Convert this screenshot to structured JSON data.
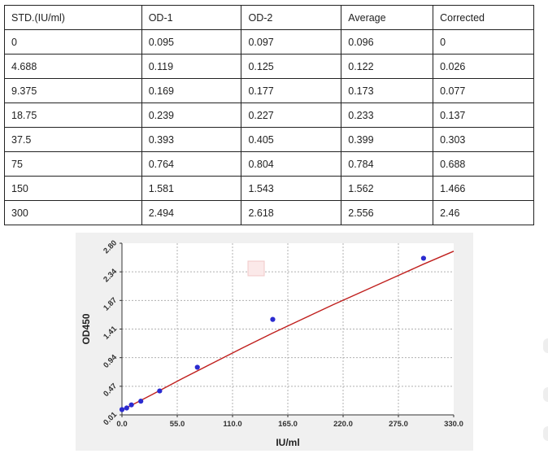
{
  "table": {
    "headers": [
      "STD.(IU/ml)",
      "OD-1",
      "OD-2",
      "Average",
      "Corrected"
    ],
    "rows": [
      [
        "0",
        "0.095",
        "0.097",
        "0.096",
        "0"
      ],
      [
        "4.688",
        "0.119",
        "0.125",
        "0.122",
        "0.026"
      ],
      [
        "9.375",
        "0.169",
        "0.177",
        "0.173",
        "0.077"
      ],
      [
        "18.75",
        "0.239",
        "0.227",
        "0.233",
        "0.137"
      ],
      [
        "37.5",
        "0.393",
        "0.405",
        "0.399",
        "0.303"
      ],
      [
        "75",
        "0.764",
        "0.804",
        "0.784",
        "0.688"
      ],
      [
        "150",
        "1.581",
        "1.543",
        "1.562",
        "1.466"
      ],
      [
        "300",
        "2.494",
        "2.618",
        "2.556",
        "2.46"
      ]
    ]
  },
  "chart_data": {
    "type": "scatter",
    "xlabel": "IU/ml",
    "ylabel": "OD450",
    "xlim": [
      0,
      330
    ],
    "ylim": [
      0.01,
      2.8
    ],
    "x_ticks": [
      "0.0",
      "55.0",
      "110.0",
      "165.0",
      "220.0",
      "275.0",
      "330.0"
    ],
    "y_ticks": [
      "0.01",
      "0.47",
      "0.94",
      "1.41",
      "1.87",
      "2.34",
      "2.80"
    ],
    "grid": true,
    "points": {
      "x": [
        0,
        4.688,
        9.375,
        18.75,
        37.5,
        75,
        150,
        300
      ],
      "y": [
        0.096,
        0.122,
        0.173,
        0.233,
        0.399,
        0.784,
        1.562,
        2.556
      ]
    },
    "fit_curve": {
      "x": [
        0,
        30,
        60,
        90,
        120,
        150,
        180,
        210,
        240,
        270,
        300,
        330
      ],
      "y": [
        0.085,
        0.34,
        0.6,
        0.85,
        1.1,
        1.34,
        1.57,
        1.8,
        2.02,
        2.24,
        2.46,
        2.67
      ]
    },
    "colors": {
      "points": "#2b2bd0",
      "curve": "#c0201e",
      "grid": "#b0b0b0",
      "background": "#f0f0f0",
      "plot_background": "#ffffff"
    }
  }
}
